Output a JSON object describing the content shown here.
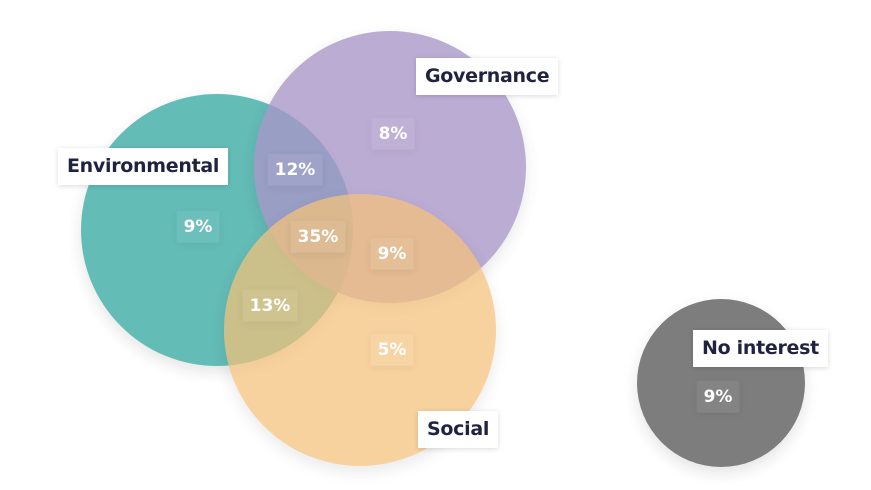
{
  "chart_data": {
    "type": "venn",
    "sets": [
      {
        "name": "Environmental",
        "color": "#4fb3ae"
      },
      {
        "name": "Governance",
        "color": "#a896c8"
      },
      {
        "name": "Social",
        "color": "#f5c27a"
      },
      {
        "name": "No interest",
        "color": "#6f6f6f"
      }
    ],
    "regions": [
      {
        "sets": [
          "Environmental"
        ],
        "label": "9%",
        "value": 9
      },
      {
        "sets": [
          "Governance"
        ],
        "label": "8%",
        "value": 8
      },
      {
        "sets": [
          "Social"
        ],
        "label": "5%",
        "value": 5
      },
      {
        "sets": [
          "Environmental",
          "Governance"
        ],
        "label": "12%",
        "value": 12
      },
      {
        "sets": [
          "Environmental",
          "Social"
        ],
        "label": "13%",
        "value": 13
      },
      {
        "sets": [
          "Governance",
          "Social"
        ],
        "label": "9%",
        "value": 9
      },
      {
        "sets": [
          "Environmental",
          "Governance",
          "Social"
        ],
        "label": "35%",
        "value": 35
      },
      {
        "sets": [
          "No interest"
        ],
        "label": "9%",
        "value": 9
      }
    ]
  }
}
